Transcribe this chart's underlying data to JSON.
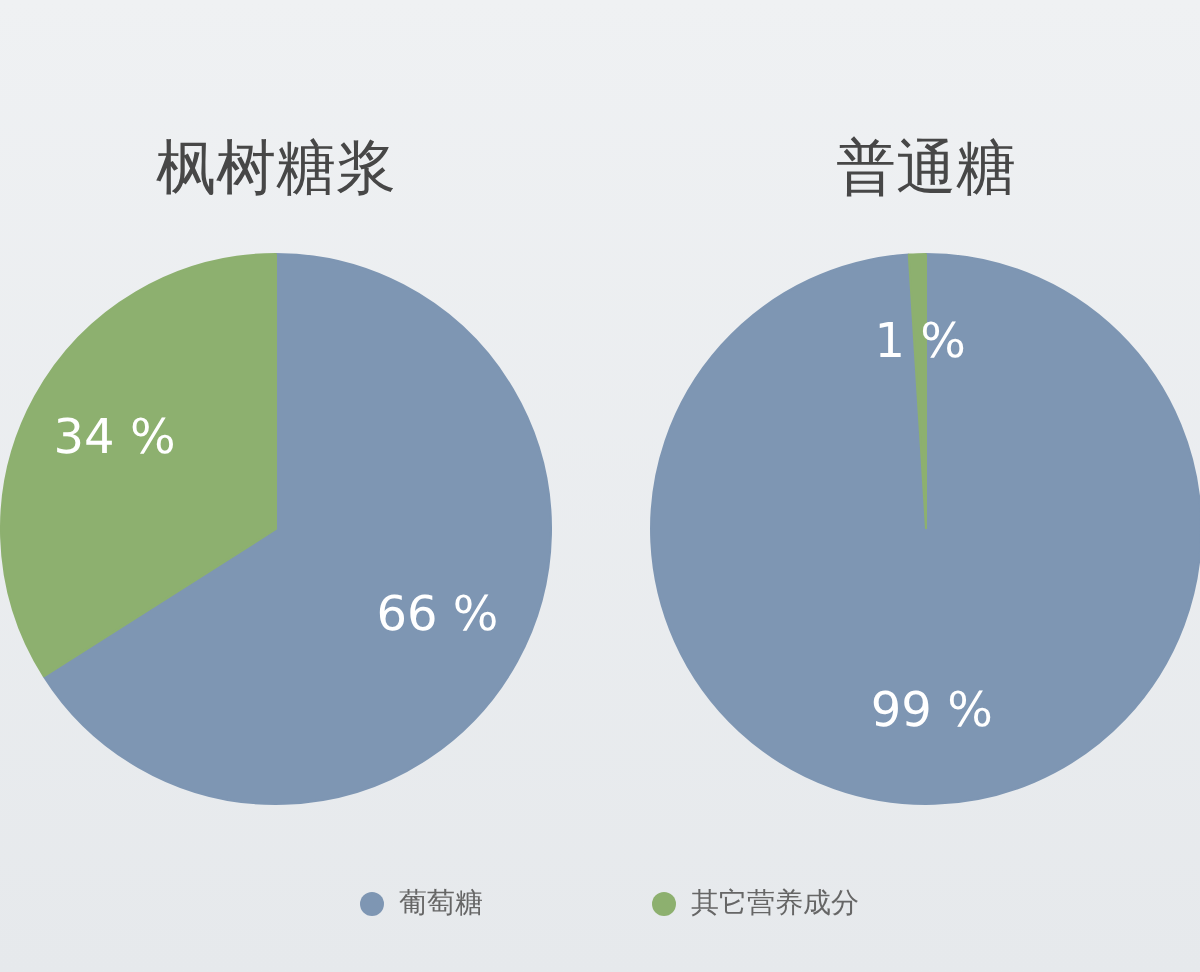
{
  "chart_data": {
    "type": "pie",
    "categories": [
      "葡萄糖",
      "其它营养成分"
    ],
    "colors": [
      "#7e96b3",
      "#8db06f"
    ],
    "legend": "bottom",
    "series": [
      {
        "name": "枫树糖浆",
        "values": [
          66,
          34
        ],
        "value_labels": [
          "66 %",
          "34 %"
        ]
      },
      {
        "name": "普通糖",
        "values": [
          99,
          1
        ],
        "value_labels": [
          "99 %",
          "1 %"
        ]
      }
    ]
  }
}
